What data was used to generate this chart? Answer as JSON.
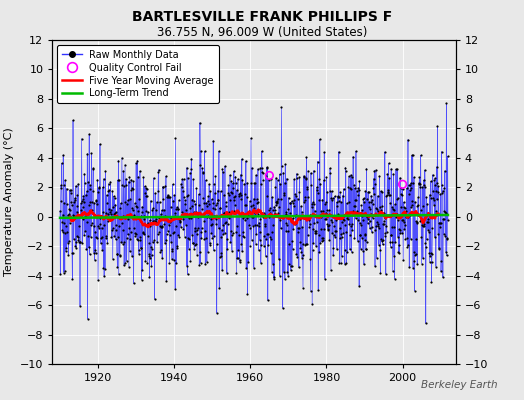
{
  "title": "BARTLESVILLE FRANK PHILLIPS F",
  "subtitle": "36.755 N, 96.009 W (United States)",
  "ylabel": "Temperature Anomaly (°C)",
  "credit": "Berkeley Earth",
  "ylim": [
    -10,
    12
  ],
  "yticks": [
    -10,
    -8,
    -6,
    -4,
    -2,
    0,
    2,
    4,
    6,
    8,
    10,
    12
  ],
  "xlim": [
    1908,
    2014
  ],
  "xticks": [
    1920,
    1940,
    1960,
    1980,
    2000
  ],
  "year_start": 1910,
  "year_end": 2011,
  "background_color": "#e8e8e8",
  "raw_color": "#3333ff",
  "ma_color": "#ff0000",
  "trend_color": "#00bb00",
  "qc_color": "#ff00ff",
  "seed": 17,
  "std_dev": 2.0,
  "qc_indices": [
    660,
    1080
  ],
  "qc_values": [
    2.8,
    2.2
  ]
}
